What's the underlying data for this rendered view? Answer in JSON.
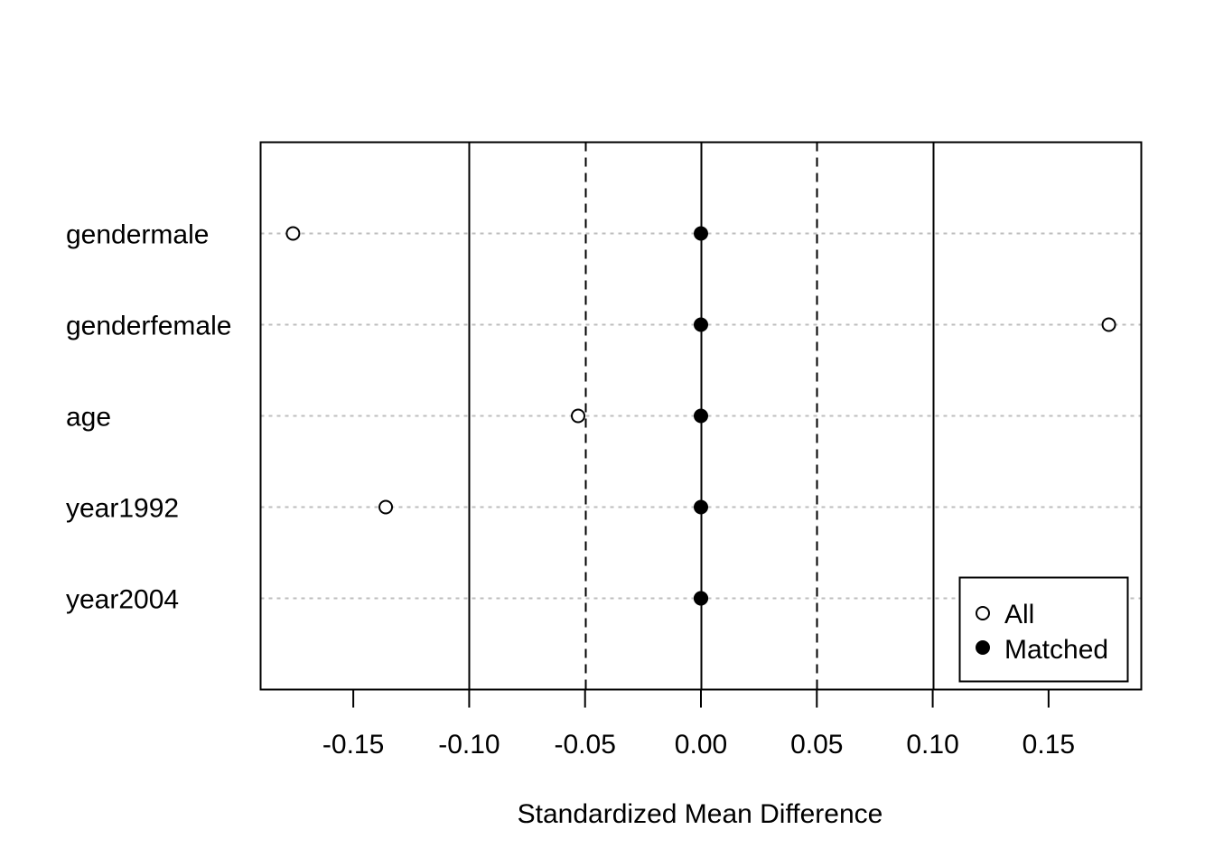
{
  "chart_data": {
    "type": "scatter",
    "title": "",
    "xlabel": "Standardized Mean Difference",
    "ylabel": "",
    "xlim": [
      -0.19,
      0.19
    ],
    "xticks": [
      -0.15,
      -0.1,
      -0.05,
      0.0,
      0.05,
      0.1,
      0.15
    ],
    "xtick_labels": [
      "-0.15",
      "-0.10",
      "-0.05",
      "0.00",
      "0.05",
      "0.10",
      "0.15"
    ],
    "categories": [
      "gendermale",
      "genderfemale",
      "age",
      "year1992",
      "year2004"
    ],
    "series": [
      {
        "name": "All",
        "marker": "open-circle",
        "values": [
          -0.176,
          0.176,
          -0.053,
          -0.136,
          0.0
        ]
      },
      {
        "name": "Matched",
        "marker": "filled-circle",
        "values": [
          0.0,
          0.0,
          0.0,
          0.0,
          0.0
        ]
      }
    ],
    "reference_lines": {
      "solid": [
        -0.1,
        0.0,
        0.1
      ],
      "dashed": [
        -0.05,
        0.05
      ]
    },
    "grid": "horizontal dotted gray",
    "legend_position": "bottom-right",
    "colors": {
      "axis": "#000000",
      "grid": "#bebebe",
      "marker": "#000000"
    }
  }
}
